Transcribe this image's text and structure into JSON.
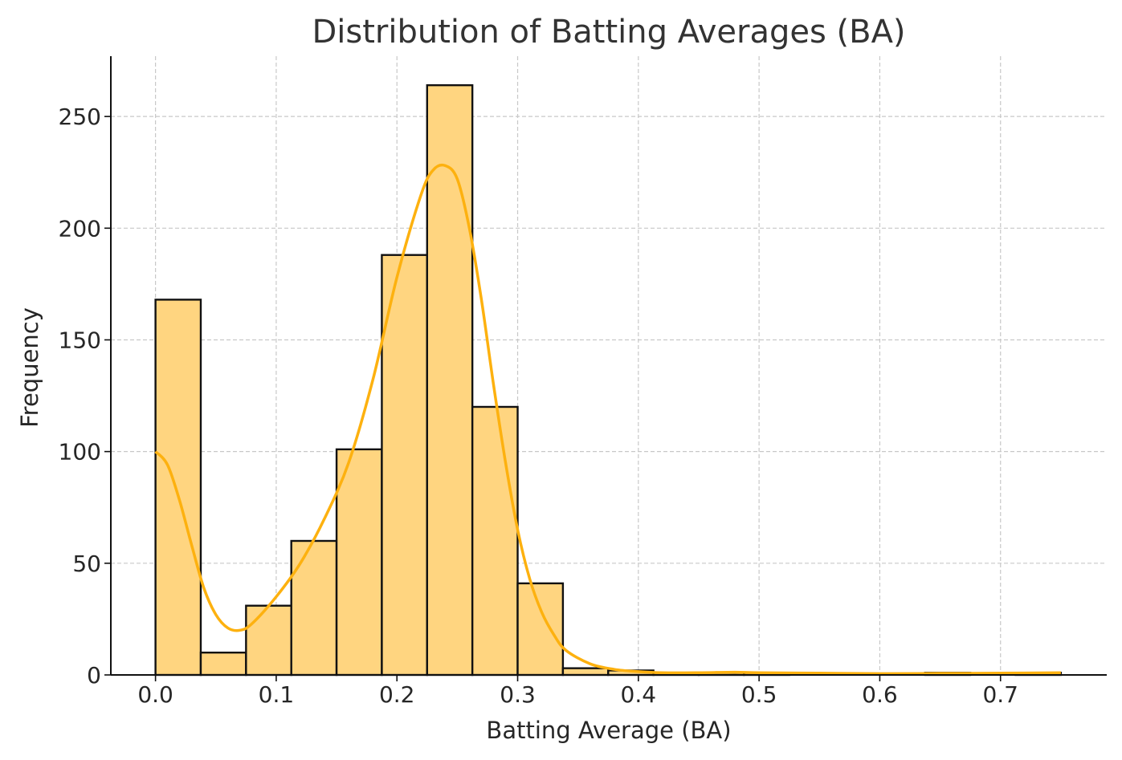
{
  "chart_data": {
    "type": "bar",
    "title": "Distribution of Batting Averages (BA)",
    "xlabel": "Batting Average (BA)",
    "ylabel": "Frequency",
    "xlim": [
      -0.037,
      0.788
    ],
    "ylim": [
      0,
      277
    ],
    "grid": true,
    "x_ticks": [
      "0.0",
      "0.1",
      "0.2",
      "0.3",
      "0.4",
      "0.5",
      "0.6",
      "0.7"
    ],
    "y_ticks": [
      "0",
      "50",
      "100",
      "150",
      "200",
      "250"
    ],
    "bar_color": "#ffd580",
    "kde_color": "#fdb10f",
    "bins": [
      {
        "x0": 0.0,
        "x1": 0.0375,
        "count": 168
      },
      {
        "x0": 0.0375,
        "x1": 0.075,
        "count": 10
      },
      {
        "x0": 0.075,
        "x1": 0.1125,
        "count": 31
      },
      {
        "x0": 0.1125,
        "x1": 0.15,
        "count": 60
      },
      {
        "x0": 0.15,
        "x1": 0.1875,
        "count": 101
      },
      {
        "x0": 0.1875,
        "x1": 0.225,
        "count": 188
      },
      {
        "x0": 0.225,
        "x1": 0.2625,
        "count": 264
      },
      {
        "x0": 0.2625,
        "x1": 0.3,
        "count": 120
      },
      {
        "x0": 0.3,
        "x1": 0.3375,
        "count": 41
      },
      {
        "x0": 0.3375,
        "x1": 0.375,
        "count": 3
      },
      {
        "x0": 0.375,
        "x1": 0.4125,
        "count": 2
      },
      {
        "x0": 0.4125,
        "x1": 0.45,
        "count": 1
      },
      {
        "x0": 0.45,
        "x1": 0.4875,
        "count": 1
      },
      {
        "x0": 0.4875,
        "x1": 0.525,
        "count": 1
      },
      {
        "x0": 0.525,
        "x1": 0.5625,
        "count": 0
      },
      {
        "x0": 0.5625,
        "x1": 0.6,
        "count": 0
      },
      {
        "x0": 0.6,
        "x1": 0.6375,
        "count": 0
      },
      {
        "x0": 0.6375,
        "x1": 0.675,
        "count": 1
      },
      {
        "x0": 0.675,
        "x1": 0.7125,
        "count": 0
      },
      {
        "x0": 0.7125,
        "x1": 0.75,
        "count": 1
      }
    ],
    "kde": {
      "x": [
        0.0,
        0.01,
        0.02,
        0.03,
        0.04,
        0.05,
        0.06,
        0.07,
        0.08,
        0.1,
        0.12,
        0.14,
        0.16,
        0.18,
        0.2,
        0.22,
        0.23,
        0.24,
        0.25,
        0.26,
        0.27,
        0.28,
        0.29,
        0.3,
        0.31,
        0.32,
        0.33,
        0.34,
        0.36,
        0.38,
        0.4,
        0.42,
        0.45,
        0.48,
        0.5,
        0.55,
        0.6,
        0.65,
        0.7,
        0.75
      ],
      "y": [
        100,
        94,
        78,
        58,
        39,
        27,
        21,
        20,
        23,
        35,
        50,
        70,
        95,
        132,
        178,
        215,
        226,
        228,
        222,
        200,
        168,
        130,
        95,
        65,
        43,
        28,
        18,
        11,
        5,
        2.5,
        1.5,
        1,
        1,
        1.2,
        1,
        0.8,
        0.6,
        0.7,
        0.8,
        1
      ]
    }
  }
}
